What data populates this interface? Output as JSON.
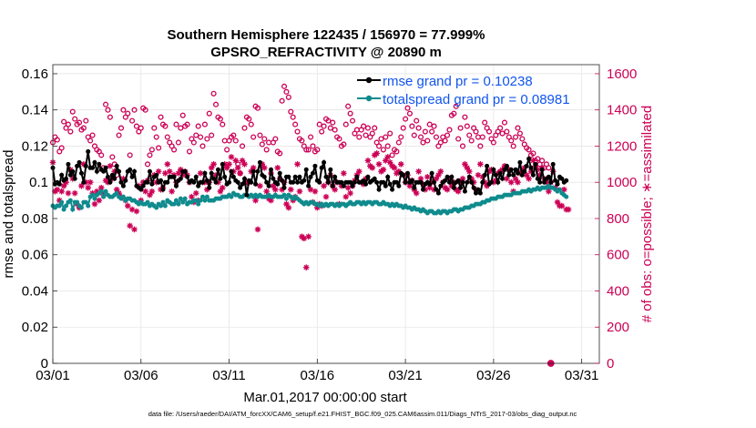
{
  "chart_data": {
    "type": "line",
    "title": [
      "Southern Hemisphere 122435 / 156970 = 77.999%",
      "GPSRO_REFRACTIVITY @ 20890 m"
    ],
    "xlabel": "Mar.01,2017 00:00:00 start",
    "ylabel": "rmse and totalspread",
    "ylabel_right": "# of obs: o=possible; ∗=assimilated",
    "footer": "data file: /Users/raeder/DAI/ATM_forcXX/CAM6_setup/f.e21.FHIST_BGC.f09_025.CAM6assim.011/Diags_NTrS_2017-03/obs_diag_output.nc",
    "xlim": [
      1,
      32
    ],
    "ylim": [
      0,
      0.165
    ],
    "ylim_right": [
      0,
      1650
    ],
    "x_ticks": [
      1,
      6,
      11,
      16,
      21,
      26,
      31
    ],
    "x_tick_labels": [
      "03/01",
      "03/06",
      "03/11",
      "03/16",
      "03/21",
      "03/26",
      "03/31"
    ],
    "y_ticks": [
      0,
      0.02,
      0.04,
      0.06,
      0.08,
      0.1,
      0.12,
      0.14,
      0.16
    ],
    "y_tick_labels": [
      "0",
      "0.02",
      "0.04",
      "0.06",
      "0.08",
      "0.1",
      "0.12",
      "0.14",
      "0.16"
    ],
    "y_ticks_right": [
      0,
      200,
      400,
      600,
      800,
      1000,
      1200,
      1400,
      1600
    ],
    "grid": true,
    "legend_position": "top-right",
    "x_step_days": 0.125,
    "colors": {
      "rmse": "#000000",
      "spread": "#0f8b8d",
      "obs": "#cc0055"
    },
    "series": [
      {
        "name": "rmse grand pr = 0.10238",
        "axis": "left",
        "marker": "filled-circle",
        "values": [
          0.108,
          0.099,
          0.1,
          0.099,
          0.104,
          0.101,
          0.102,
          0.11,
          0.104,
          0.106,
          0.102,
          0.109,
          0.111,
          0.105,
          0.1,
          0.109,
          0.117,
          0.108,
          0.108,
          0.111,
          0.106,
          0.11,
          0.107,
          0.106,
          0.108,
          0.103,
          0.1,
          0.104,
          0.102,
          0.109,
          0.106,
          0.1,
          0.098,
          0.101,
          0.106,
          0.107,
          0.103,
          0.106,
          0.098,
          0.097,
          0.096,
          0.098,
          0.1,
          0.1,
          0.106,
          0.099,
          0.103,
          0.104,
          0.1,
          0.101,
          0.096,
          0.1,
          0.1,
          0.103,
          0.103,
          0.103,
          0.098,
          0.101,
          0.102,
          0.106,
          0.106,
          0.103,
          0.1,
          0.101,
          0.1,
          0.103,
          0.098,
          0.1,
          0.1,
          0.105,
          0.101,
          0.097,
          0.105,
          0.102,
          0.1,
          0.107,
          0.102,
          0.11,
          0.103,
          0.099,
          0.1,
          0.106,
          0.103,
          0.101,
          0.1,
          0.097,
          0.099,
          0.102,
          0.093,
          0.101,
          0.1,
          0.106,
          0.099,
          0.106,
          0.111,
          0.104,
          0.103,
          0.1,
          0.098,
          0.107,
          0.102,
          0.1,
          0.099,
          0.105,
          0.101,
          0.097,
          0.103,
          0.103,
          0.1,
          0.1,
          0.103,
          0.1,
          0.103,
          0.1,
          0.101,
          0.107,
          0.098,
          0.103,
          0.105,
          0.109,
          0.101,
          0.1,
          0.108,
          0.111,
          0.103,
          0.1,
          0.107,
          0.098,
          0.103,
          0.1,
          0.1,
          0.1,
          0.098,
          0.1,
          0.1,
          0.1,
          0.098,
          0.1,
          0.103,
          0.1,
          0.1,
          0.101,
          0.099,
          0.103,
          0.1,
          0.101,
          0.102,
          0.1,
          0.096,
          0.1,
          0.1,
          0.098,
          0.103,
          0.099,
          0.096,
          0.1,
          0.1,
          0.098,
          0.105,
          0.104,
          0.1,
          0.105,
          0.1,
          0.101,
          0.097,
          0.1,
          0.1,
          0.1,
          0.096,
          0.099,
          0.1,
          0.099,
          0.105,
          0.1,
          0.096,
          0.094,
          0.098,
          0.1,
          0.101,
          0.103,
          0.1,
          0.103,
          0.097,
          0.1,
          0.101,
          0.097,
          0.1,
          0.095,
          0.1,
          0.103,
          0.1,
          0.097,
          0.094,
          0.096,
          0.094,
          0.1,
          0.104,
          0.109,
          0.099,
          0.1,
          0.107,
          0.104,
          0.1,
          0.105,
          0.102,
          0.107,
          0.109,
          0.104,
          0.107,
          0.104,
          0.107,
          0.105,
          0.111,
          0.104,
          0.106,
          0.109,
          0.113,
          0.108,
          0.104,
          0.11,
          0.102,
          0.1,
          0.107,
          0.1,
          0.102,
          0.103,
          0.1,
          0.11,
          0.101,
          0.099,
          0.103,
          0.102,
          0.1,
          0.101
        ]
      },
      {
        "name": "totalspread grand pr = 0.08981",
        "axis": "left",
        "marker": "filled-circle",
        "values": [
          0.087,
          0.086,
          0.087,
          0.087,
          0.089,
          0.085,
          0.087,
          0.089,
          0.09,
          0.085,
          0.089,
          0.089,
          0.087,
          0.086,
          0.089,
          0.089,
          0.087,
          0.092,
          0.093,
          0.091,
          0.093,
          0.094,
          0.095,
          0.092,
          0.095,
          0.093,
          0.092,
          0.092,
          0.093,
          0.094,
          0.092,
          0.091,
          0.092,
          0.09,
          0.091,
          0.091,
          0.09,
          0.09,
          0.089,
          0.088,
          0.089,
          0.088,
          0.088,
          0.089,
          0.087,
          0.088,
          0.087,
          0.086,
          0.088,
          0.087,
          0.089,
          0.087,
          0.09,
          0.089,
          0.088,
          0.088,
          0.09,
          0.088,
          0.091,
          0.089,
          0.091,
          0.088,
          0.089,
          0.089,
          0.09,
          0.09,
          0.088,
          0.09,
          0.092,
          0.09,
          0.092,
          0.09,
          0.09,
          0.09,
          0.091,
          0.091,
          0.091,
          0.092,
          0.092,
          0.092,
          0.093,
          0.092,
          0.094,
          0.093,
          0.093,
          0.092,
          0.092,
          0.093,
          0.093,
          0.092,
          0.093,
          0.092,
          0.093,
          0.092,
          0.093,
          0.092,
          0.092,
          0.092,
          0.093,
          0.092,
          0.092,
          0.093,
          0.092,
          0.092,
          0.092,
          0.093,
          0.091,
          0.093,
          0.092,
          0.091,
          0.092,
          0.091,
          0.09,
          0.089,
          0.088,
          0.089,
          0.088,
          0.089,
          0.089,
          0.088,
          0.088,
          0.087,
          0.088,
          0.087,
          0.088,
          0.087,
          0.088,
          0.088,
          0.087,
          0.088,
          0.087,
          0.088,
          0.088,
          0.087,
          0.088,
          0.089,
          0.088,
          0.088,
          0.089,
          0.089,
          0.088,
          0.089,
          0.088,
          0.089,
          0.089,
          0.088,
          0.089,
          0.089,
          0.088,
          0.088,
          0.089,
          0.088,
          0.088,
          0.087,
          0.088,
          0.087,
          0.088,
          0.087,
          0.087,
          0.086,
          0.087,
          0.086,
          0.086,
          0.085,
          0.086,
          0.085,
          0.085,
          0.084,
          0.085,
          0.084,
          0.083,
          0.084,
          0.084,
          0.083,
          0.083,
          0.084,
          0.083,
          0.084,
          0.084,
          0.083,
          0.084,
          0.084,
          0.085,
          0.085,
          0.084,
          0.085,
          0.085,
          0.086,
          0.086,
          0.086,
          0.087,
          0.087,
          0.088,
          0.088,
          0.088,
          0.089,
          0.089,
          0.09,
          0.09,
          0.091,
          0.091,
          0.091,
          0.092,
          0.092,
          0.092,
          0.093,
          0.093,
          0.093,
          0.093,
          0.094,
          0.094,
          0.094,
          0.094,
          0.095,
          0.095,
          0.095,
          0.096,
          0.095,
          0.096,
          0.096,
          0.097,
          0.096,
          0.097,
          0.097,
          0.097,
          0.098,
          0.097,
          0.097,
          0.096,
          0.095,
          0.096,
          0.094,
          0.093,
          0.092
        ]
      },
      {
        "name": "# of obs possible",
        "axis": "right",
        "marker": "open-circle",
        "values": [
          1220,
          1250,
          1235,
          1170,
          1190,
          1335,
          1300,
          1320,
          1280,
          1390,
          1350,
          1320,
          1330,
          1290,
          1300,
          1340,
          1250,
          1230,
          1260,
          1200,
          1180,
          1170,
          1150,
          1080,
          1430,
          1400,
          1360,
          1140,
          1100,
          1040,
          1260,
          1300,
          1400,
          1360,
          1380,
          1150,
          1340,
          1400,
          1310,
          1280,
          1300,
          1410,
          1400,
          1100,
          1150,
          1180,
          1300,
          1250,
          1190,
          1360,
          1320,
          1310,
          1250,
          1220,
          1200,
          1180,
          1320,
          1220,
          1300,
          1370,
          1310,
          1320,
          1170,
          1240,
          1220,
          1260,
          1310,
          1250,
          1200,
          1320,
          1240,
          1380,
          1260,
          1490,
          1430,
          1360,
          1350,
          1320,
          1230,
          1180,
          1230,
          1250,
          1260,
          1230,
          1100,
          1050,
          1200,
          1300,
          1360,
          1350,
          1320,
          1250,
          1420,
          1410,
          1260,
          1210,
          1240,
          1180,
          1220,
          1050,
          1220,
          1240,
          1170,
          1160,
          1450,
          1530,
          1500,
          1470,
          1390,
          1360,
          1320,
          1280,
          1240,
          1230,
          1200,
          1180,
          1180,
          1250,
          1200,
          1170,
          1180,
          1320,
          1280,
          1310,
          1350,
          1340,
          1300,
          1330,
          1290,
          1250,
          1240,
          1200,
          1210,
          1320,
          1420,
          1380,
          1340,
          1270,
          1290,
          1250,
          1290,
          1310,
          1260,
          1300,
          1250,
          1270,
          1300,
          1220,
          1200,
          1240,
          1180,
          1250,
          1200,
          1270,
          1150,
          1180,
          1170,
          1220,
          1250,
          1300,
          1350,
          1410,
          1380,
          1310,
          1260,
          1340,
          1300,
          1250,
          1220,
          1280,
          1230,
          1320,
          1280,
          1310,
          1250,
          1200,
          1220,
          1250,
          1230,
          1260,
          1290,
          1370,
          1380,
          1420,
          1240,
          1300,
          1200,
          1360,
          1310,
          1260,
          1230,
          1300,
          1280,
          1250,
          1200,
          1250,
          1330,
          1300,
          1280,
          1240,
          1220,
          1260,
          1280,
          1300,
          1270,
          1330,
          1280,
          1250,
          1230,
          1200,
          1250,
          1300,
          1270,
          1240,
          1210,
          1190,
          1180,
          1150,
          1160,
          1120,
          1130,
          1100,
          1120,
          1080,
          1100,
          1080,
          0
        ]
      },
      {
        "name": "# of obs assimilated",
        "axis": "right",
        "marker": "asterisk",
        "values": [
          1110,
          950,
          960,
          900,
          950,
          980,
          1000,
          940,
          1070,
          1020,
          940,
          880,
          860,
          980,
          1100,
          1000,
          970,
          1000,
          940,
          880,
          950,
          900,
          970,
          930,
          1010,
          1000,
          1090,
          1020,
          1060,
          960,
          940,
          920,
          1020,
          900,
          870,
          760,
          850,
          740,
          840,
          980,
          900,
          1000,
          950,
          1010,
          930,
          950,
          1040,
          1000,
          1060,
          960,
          970,
          1050,
          1100,
          1060,
          950,
          1040,
          1000,
          1050,
          1070,
          1040,
          1060,
          1040,
          1000,
          920,
          890,
          940,
          900,
          1050,
          1000,
          1000,
          960,
          1000,
          1080,
          1100,
          1040,
          1000,
          950,
          970,
          1100,
          1080,
          1100,
          1140,
          1060,
          1120,
          1080,
          1050,
          1120,
          1100,
          1000,
          1000,
          1060,
          1080,
          900,
          740,
          980,
          1100,
          1080,
          950,
          910,
          900,
          980,
          960,
          1080,
          1020,
          960,
          1000,
          880,
          860,
          960,
          900,
          920,
          1100,
          950,
          700,
          690,
          530,
          700,
          960,
          890,
          950,
          860,
          880,
          870,
          980,
          920,
          1000,
          1040,
          980,
          960,
          1000,
          880,
          980,
          1050,
          920,
          970,
          940,
          980,
          1010,
          1040,
          1060,
          1000,
          990,
          1020,
          1120,
          1090,
          1080,
          1150,
          1160,
          1100,
          1060,
          1070,
          1120,
          1140,
          1110,
          1090,
          1080,
          1050,
          1060,
          1100,
          1040,
          1000,
          1040,
          980,
          1010,
          960,
          940,
          1060,
          1020,
          990,
          960,
          1030,
          970,
          1000,
          960,
          1020,
          1040,
          1060,
          1000,
          970,
          960,
          1020,
          980,
          1000,
          960,
          950,
          1000,
          1020,
          1100,
          1080,
          1060,
          1020,
          1000,
          960,
          1040,
          1100,
          1030,
          1000,
          980,
          1060,
          1070,
          1000,
          1010,
          1050,
          1060,
          1070,
          1090,
          1020,
          1070,
          1000,
          950,
          1020,
          1000,
          1050,
          1060,
          1080,
          1040,
          1020,
          1060,
          1120,
          1090,
          1070,
          1040,
          1080,
          1020,
          1000,
          950,
          1000,
          1060,
          970,
          890,
          870,
          870,
          960,
          850,
          850
        ]
      }
    ]
  }
}
